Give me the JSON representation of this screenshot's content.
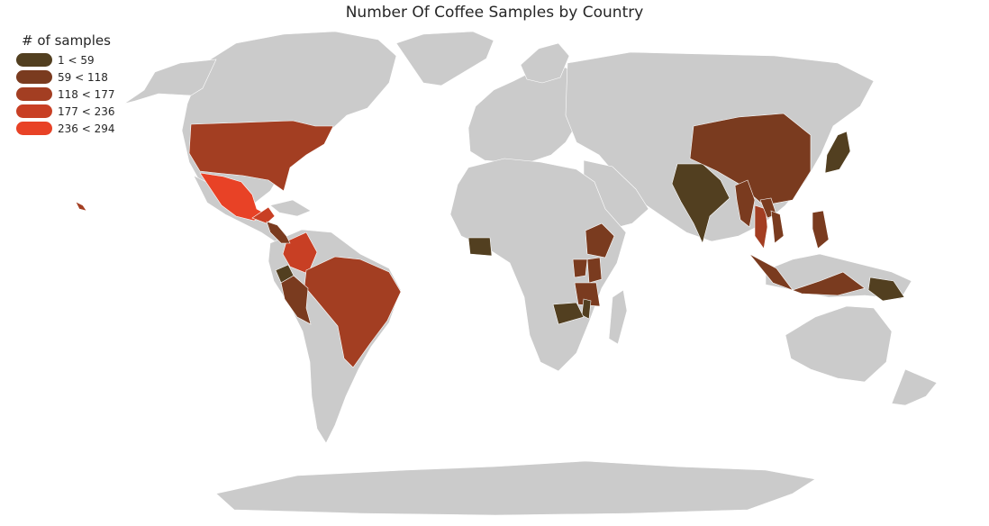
{
  "title": "Number Of Coffee Samples by Country",
  "legend": {
    "title": "# of samples",
    "items": [
      {
        "label": "1 < 59",
        "color": "#523f20"
      },
      {
        "label": "59 < 118",
        "color": "#7a3b1f"
      },
      {
        "label": "118 < 177",
        "color": "#a33e22"
      },
      {
        "label": "177 < 236",
        "color": "#c83f24"
      },
      {
        "label": "236 < 294",
        "color": "#e84226"
      }
    ]
  },
  "colors": {
    "land": "#cbcbcb",
    "border": "#ffffff",
    "background": "#ffffff"
  },
  "map_data": [
    {
      "region": "United States",
      "bin": 2
    },
    {
      "region": "Mexico",
      "bin": 4
    },
    {
      "region": "Guatemala",
      "bin": 3
    },
    {
      "region": "Colombia",
      "bin": 3
    },
    {
      "region": "Brazil",
      "bin": 2
    },
    {
      "region": "Central America",
      "bin": 1
    },
    {
      "region": "Ecuador",
      "bin": 0
    },
    {
      "region": "Peru",
      "bin": 1
    },
    {
      "region": "Ethiopia",
      "bin": 1
    },
    {
      "region": "Kenya",
      "bin": 1
    },
    {
      "region": "Tanzania",
      "bin": 1
    },
    {
      "region": "Uganda",
      "bin": 1
    },
    {
      "region": "Malawi",
      "bin": 0
    },
    {
      "region": "Zambia",
      "bin": 0
    },
    {
      "region": "Ivory Coast",
      "bin": 0
    },
    {
      "region": "India",
      "bin": 0
    },
    {
      "region": "China",
      "bin": 1
    },
    {
      "region": "Myanmar",
      "bin": 1
    },
    {
      "region": "Thailand",
      "bin": 2
    },
    {
      "region": "Laos",
      "bin": 1
    },
    {
      "region": "Vietnam",
      "bin": 1
    },
    {
      "region": "Philippines",
      "bin": 1
    },
    {
      "region": "Indonesia",
      "bin": 1
    },
    {
      "region": "Papua New Guinea",
      "bin": 0
    },
    {
      "region": "Japan",
      "bin": 0
    },
    {
      "region": "Hawaii",
      "bin": 2
    }
  ]
}
